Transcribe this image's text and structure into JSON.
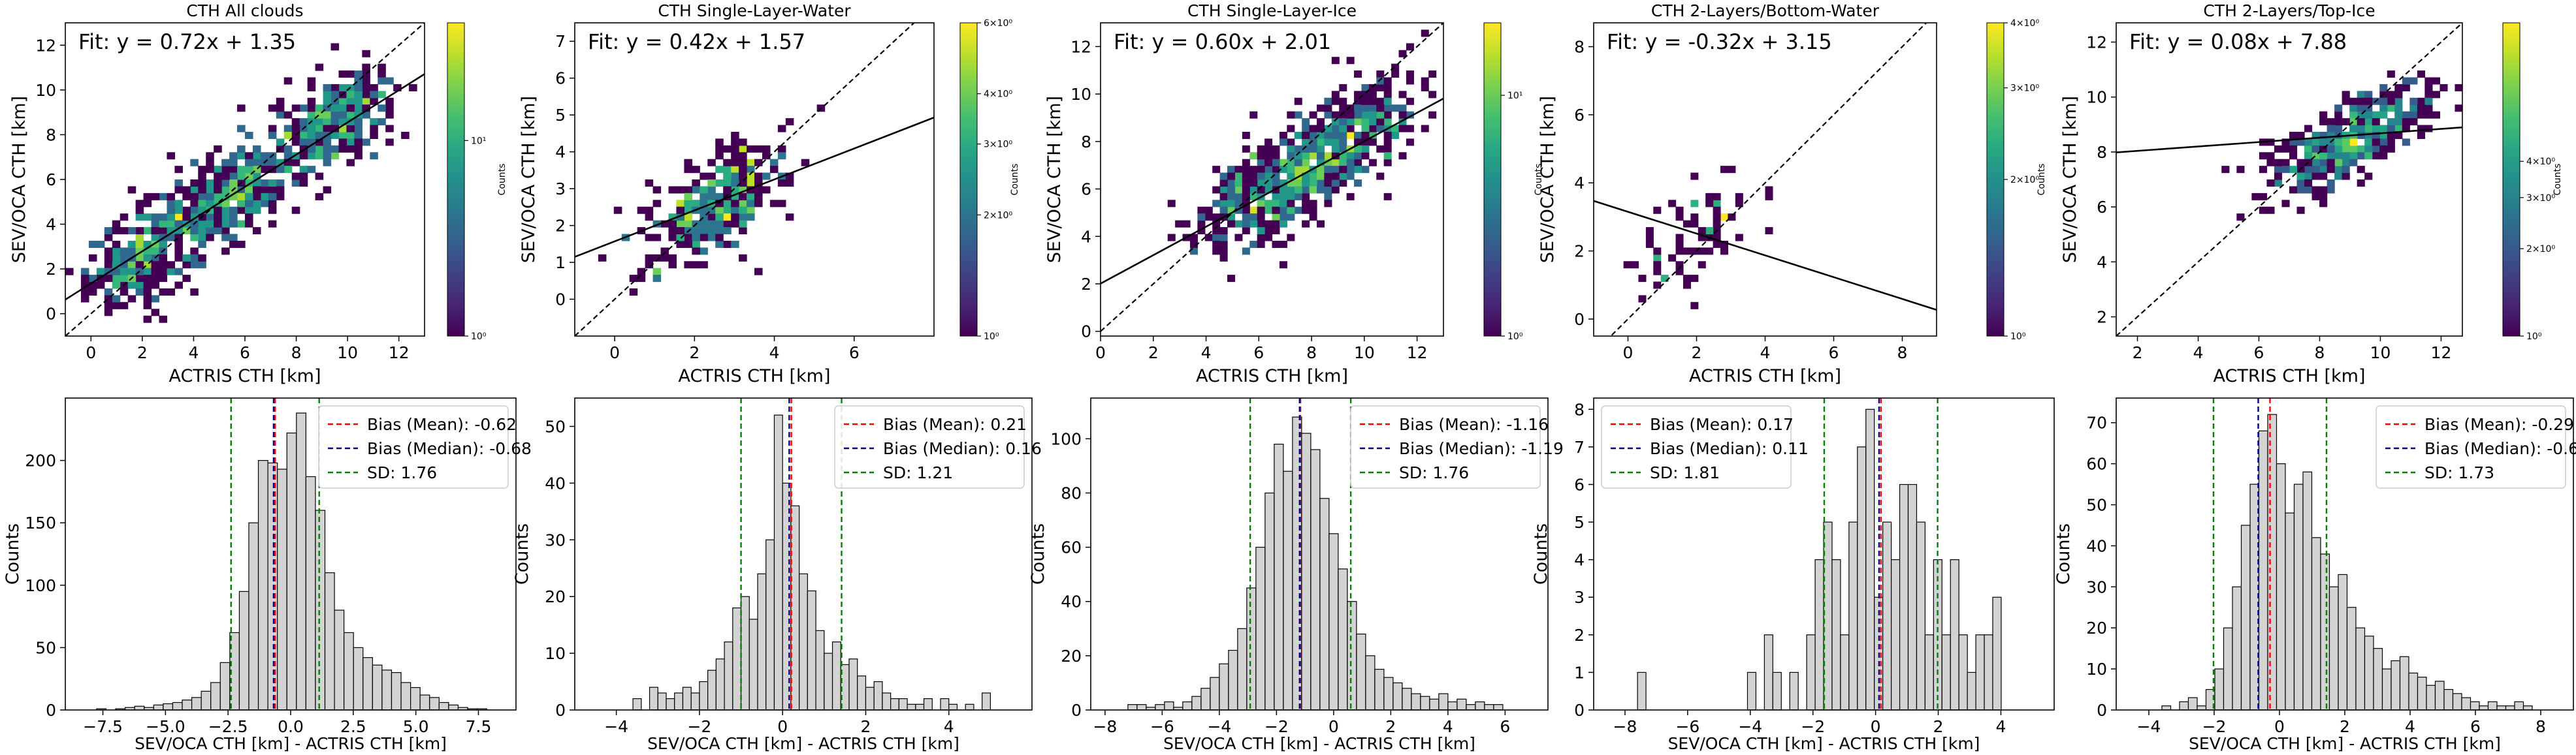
{
  "chart_data": [
    {
      "type": "heatmap",
      "title": "CTH All clouds",
      "xlabel": "ACTRIS CTH [km]",
      "ylabel": "SEV/OCA CTH [km]",
      "fit_label": "Fit: y = 0.72x + 1.35",
      "fit": {
        "slope": 0.72,
        "intercept": 1.35
      },
      "xlim": [
        -1,
        13
      ],
      "ylim": [
        -1,
        13
      ],
      "xticks": [
        0,
        2,
        4,
        6,
        8,
        10,
        12
      ],
      "yticks": [
        0,
        2,
        4,
        6,
        8,
        10,
        12
      ],
      "grid": false,
      "colorbar": {
        "label": "Counts",
        "scale": "log",
        "range": [
          1,
          40
        ],
        "ticks": [
          {
            "value": 1,
            "label": "10⁰"
          },
          {
            "value": 10,
            "label": "10¹"
          }
        ]
      },
      "cloud": {
        "centers": [
          [
            2.2,
            2.8
          ],
          [
            5.5,
            5.5
          ],
          [
            9.5,
            8.5
          ]
        ],
        "spread": [
          1.2,
          1.4
        ],
        "count": 900
      }
    },
    {
      "type": "heatmap",
      "title": "CTH Single-Layer-Water",
      "xlabel": "ACTRIS CTH [km]",
      "ylabel": "SEV/OCA CTH [km]",
      "fit_label": "Fit: y = 0.42x + 1.57",
      "fit": {
        "slope": 0.42,
        "intercept": 1.57
      },
      "xlim": [
        -1,
        8
      ],
      "ylim": [
        -1,
        7.5
      ],
      "xticks": [
        0,
        2,
        4,
        6
      ],
      "yticks": [
        0,
        1,
        2,
        3,
        4,
        5,
        6,
        7
      ],
      "grid": false,
      "colorbar": {
        "label": "Counts",
        "scale": "log",
        "range": [
          1,
          6
        ],
        "ticks": [
          {
            "value": 1,
            "label": "10⁰"
          },
          {
            "value": 2,
            "label": "2×10⁰"
          },
          {
            "value": 3,
            "label": "3×10⁰"
          },
          {
            "value": 4,
            "label": "4×10⁰"
          },
          {
            "value": 6,
            "label": "6×10⁰"
          }
        ]
      },
      "cloud": {
        "centers": [
          [
            2.5,
            2.6
          ]
        ],
        "spread": [
          0.9,
          0.9
        ],
        "count": 320
      }
    },
    {
      "type": "heatmap",
      "title": "CTH Single-Layer-Ice",
      "xlabel": "ACTRIS CTH [km]",
      "ylabel": "SEV/OCA CTH [km]",
      "fit_label": "Fit: y = 0.60x + 2.01",
      "fit": {
        "slope": 0.6,
        "intercept": 2.01
      },
      "xlim": [
        0,
        13
      ],
      "ylim": [
        -0.2,
        13
      ],
      "xticks": [
        0,
        2,
        4,
        6,
        8,
        10,
        12
      ],
      "yticks": [
        0,
        2,
        4,
        6,
        8,
        10,
        12
      ],
      "grid": false,
      "colorbar": {
        "label": "Counts",
        "scale": "log",
        "range": [
          1,
          20
        ],
        "ticks": [
          {
            "value": 1,
            "label": "10⁰"
          },
          {
            "value": 10,
            "label": "10¹"
          }
        ]
      },
      "cloud": {
        "centers": [
          [
            6.5,
            6.0
          ],
          [
            9.2,
            8.0
          ]
        ],
        "spread": [
          1.4,
          1.4
        ],
        "count": 700
      }
    },
    {
      "type": "heatmap",
      "title": "CTH 2-Layers/Bottom-Water",
      "xlabel": "ACTRIS CTH [km]",
      "ylabel": "SEV/OCA CTH [km]",
      "fit_label": "Fit: y = -0.32x + 3.15",
      "fit": {
        "slope": -0.32,
        "intercept": 3.15
      },
      "xlim": [
        -1,
        9
      ],
      "ylim": [
        -0.5,
        8.7
      ],
      "xticks": [
        0,
        2,
        4,
        6,
        8
      ],
      "yticks": [
        0,
        2,
        4,
        6,
        8
      ],
      "grid": false,
      "colorbar": {
        "label": "Counts",
        "scale": "log",
        "range": [
          1,
          4
        ],
        "ticks": [
          {
            "value": 1,
            "label": "10⁰"
          },
          {
            "value": 2,
            "label": "2×10⁰"
          },
          {
            "value": 3,
            "label": "3×10⁰"
          },
          {
            "value": 4,
            "label": "4×10⁰"
          }
        ]
      },
      "cloud": {
        "centers": [
          [
            2.0,
            2.5
          ]
        ],
        "spread": [
          0.9,
          1.1
        ],
        "count": 70
      }
    },
    {
      "type": "heatmap",
      "title": "CTH 2-Layers/Top-Ice",
      "xlabel": "ACTRIS CTH [km]",
      "ylabel": "SEV/OCA CTH [km]",
      "fit_label": "Fit: y = 0.08x + 7.88",
      "fit": {
        "slope": 0.08,
        "intercept": 7.88
      },
      "xlim": [
        1.3,
        12.7
      ],
      "ylim": [
        1.3,
        12.7
      ],
      "xticks": [
        2,
        4,
        6,
        8,
        10,
        12
      ],
      "yticks": [
        2,
        4,
        6,
        8,
        10,
        12
      ],
      "grid": false,
      "colorbar": {
        "label": "Counts",
        "scale": "log",
        "range": [
          1,
          12
        ],
        "ticks": [
          {
            "value": 1,
            "label": "10⁰"
          },
          {
            "value": 2,
            "label": "2×10⁰"
          },
          {
            "value": 3,
            "label": "3×10⁰"
          },
          {
            "value": 4,
            "label": "4×10⁰"
          }
        ]
      },
      "cloud": {
        "centers": [
          [
            9.0,
            8.5
          ]
        ],
        "spread": [
          1.3,
          0.9
        ],
        "count": 420
      }
    },
    {
      "type": "bar",
      "subtype": "histogram",
      "xlabel": "SEV/OCA CTH [km] - ACTRIS CTH [km]",
      "ylabel": "Counts",
      "xlim": [
        -9.0,
        9.0
      ],
      "ylim": [
        0,
        250
      ],
      "xticks": [
        -7.5,
        -5.0,
        -2.5,
        0.0,
        2.5,
        5.0,
        7.5
      ],
      "xtick_labels": [
        "−7.5",
        "−5.0",
        "−2.5",
        "0.0",
        "2.5",
        "5.0",
        "7.5"
      ],
      "yticks": [
        0,
        50,
        100,
        150,
        200
      ],
      "bin_start": -7.75,
      "bin_width": 0.38,
      "values": [
        1,
        0,
        1,
        2,
        3,
        2,
        4,
        5,
        6,
        8,
        10,
        15,
        22,
        38,
        62,
        95,
        150,
        200,
        198,
        193,
        222,
        238,
        187,
        160,
        110,
        80,
        62,
        50,
        42,
        36,
        32,
        30,
        22,
        18,
        12,
        10,
        6,
        4,
        2,
        1,
        1
      ],
      "legend_position": "top-right",
      "lines": [
        {
          "name": "Bias (Mean): -0.62",
          "x": -0.62,
          "color": "#ff0000"
        },
        {
          "name": "Bias (Median): -0.68",
          "x": -0.68,
          "color": "#00008b"
        },
        {
          "name": "SD: 1.76",
          "x_pair": [
            -2.38,
            1.14
          ],
          "color": "#008000"
        }
      ]
    },
    {
      "type": "bar",
      "subtype": "histogram",
      "xlabel": "SEV/OCA CTH [km] - ACTRIS CTH [km]",
      "ylabel": "Counts",
      "xlim": [
        -5.0,
        6.0
      ],
      "ylim": [
        0,
        55
      ],
      "xticks": [
        -4,
        -2,
        0,
        2,
        4
      ],
      "xtick_labels": [
        "−4",
        "−2",
        "0",
        "2",
        "4"
      ],
      "yticks": [
        0,
        10,
        20,
        30,
        40,
        50
      ],
      "bin_start": -3.6,
      "bin_width": 0.2,
      "values": [
        2,
        0,
        4,
        3,
        2,
        3,
        4,
        3,
        5,
        7,
        9,
        12,
        18,
        20,
        16,
        24,
        30,
        52,
        40,
        36,
        24,
        21,
        14,
        10,
        12,
        8,
        9,
        6,
        4,
        5,
        3,
        2,
        2,
        1,
        1,
        2,
        0,
        2,
        1,
        0,
        1,
        0,
        3
      ],
      "legend_position": "top-right",
      "lines": [
        {
          "name": "Bias (Mean): 0.21",
          "x": 0.21,
          "color": "#ff0000"
        },
        {
          "name": "Bias (Median): 0.16",
          "x": 0.16,
          "color": "#00008b"
        },
        {
          "name": "SD: 1.21",
          "x_pair": [
            -1.0,
            1.42
          ],
          "color": "#008000"
        }
      ]
    },
    {
      "type": "bar",
      "subtype": "histogram",
      "xlabel": "SEV/OCA CTH [km] - ACTRIS CTH [km]",
      "ylabel": "Counts",
      "xlim": [
        -8.5,
        7.5
      ],
      "ylim": [
        0,
        115
      ],
      "xticks": [
        -8,
        -6,
        -4,
        -2,
        0,
        2,
        4,
        6
      ],
      "xtick_labels": [
        "−8",
        "−6",
        "−4",
        "−2",
        "0",
        "2",
        "4",
        "6"
      ],
      "yticks": [
        0,
        20,
        40,
        60,
        80,
        100
      ],
      "bin_start": -7.2,
      "bin_width": 0.32,
      "values": [
        2,
        2,
        1,
        2,
        3,
        1,
        3,
        5,
        8,
        12,
        17,
        22,
        30,
        45,
        60,
        80,
        98,
        88,
        108,
        102,
        96,
        78,
        65,
        52,
        40,
        28,
        20,
        15,
        12,
        10,
        8,
        6,
        5,
        4,
        6,
        3,
        4,
        2,
        3,
        2,
        2
      ],
      "legend_position": "top-right",
      "lines": [
        {
          "name": "Bias (Mean): -1.16",
          "x": -1.16,
          "color": "#ff0000"
        },
        {
          "name": "Bias (Median): -1.19",
          "x": -1.19,
          "color": "#00008b"
        },
        {
          "name": "SD: 1.76",
          "x_pair": [
            -2.92,
            0.6
          ],
          "color": "#008000"
        }
      ]
    },
    {
      "type": "bar",
      "subtype": "histogram",
      "xlabel": "SEV/OCA CTH [km] - ACTRIS CTH [km]",
      "ylabel": "Counts",
      "xlim": [
        -9.0,
        5.7
      ],
      "ylim": [
        0,
        8.3
      ],
      "xticks": [
        -8,
        -6,
        -4,
        -2,
        0,
        2,
        4
      ],
      "xtick_labels": [
        "−8",
        "−6",
        "−4",
        "−2",
        "0",
        "2",
        "4"
      ],
      "yticks": [
        0,
        1,
        2,
        3,
        4,
        5,
        6,
        7,
        8
      ],
      "bin_start": -7.6,
      "bin_width": 0.27,
      "values": [
        1,
        0,
        0,
        0,
        0,
        0,
        0,
        0,
        0,
        0,
        0,
        0,
        0,
        1,
        0,
        2,
        1,
        0,
        1,
        0,
        2,
        4,
        5,
        4,
        2,
        5,
        7,
        8,
        3,
        5,
        4,
        6,
        6,
        5,
        2,
        4,
        2,
        4,
        2,
        1,
        2,
        2,
        3
      ],
      "legend_position": "top-left",
      "lines": [
        {
          "name": "Bias (Mean): 0.17",
          "x": 0.17,
          "color": "#ff0000"
        },
        {
          "name": "Bias (Median): 0.11",
          "x": 0.11,
          "color": "#00008b"
        },
        {
          "name": "SD: 1.81",
          "x_pair": [
            -1.64,
            1.98
          ],
          "color": "#008000"
        }
      ]
    },
    {
      "type": "bar",
      "subtype": "histogram",
      "xlabel": "SEV/OCA CTH [km] - ACTRIS CTH [km]",
      "ylabel": "Counts",
      "xlim": [
        -5.0,
        9.0
      ],
      "ylim": [
        0,
        76
      ],
      "xticks": [
        -4,
        -2,
        0,
        2,
        4,
        6,
        8
      ],
      "xtick_labels": [
        "−4",
        "−2",
        "0",
        "2",
        "4",
        "6",
        "8"
      ],
      "yticks": [
        0,
        10,
        20,
        30,
        40,
        50,
        60,
        70
      ],
      "bin_start": -3.6,
      "bin_width": 0.27,
      "values": [
        1,
        0,
        2,
        3,
        1,
        5,
        10,
        20,
        30,
        45,
        55,
        68,
        72,
        60,
        48,
        55,
        58,
        42,
        38,
        30,
        33,
        25,
        20,
        18,
        15,
        10,
        12,
        13,
        9,
        8,
        6,
        7,
        5,
        4,
        3,
        2,
        1,
        2,
        1,
        1,
        2,
        1
      ],
      "legend_position": "top-right",
      "lines": [
        {
          "name": "Bias (Mean): -0.29",
          "x": -0.29,
          "color": "#ff0000"
        },
        {
          "name": "Bias (Median): -0.65",
          "x": -0.65,
          "color": "#00008b"
        },
        {
          "name": "SD: 1.73",
          "x_pair": [
            -2.02,
            1.44
          ],
          "color": "#008000"
        }
      ]
    }
  ],
  "colors": {
    "bar_fill": "#d3d3d3",
    "bar_edge": "#000000",
    "fit_line": "#000000",
    "one_to_one": "#000000",
    "colormap": "viridis"
  }
}
